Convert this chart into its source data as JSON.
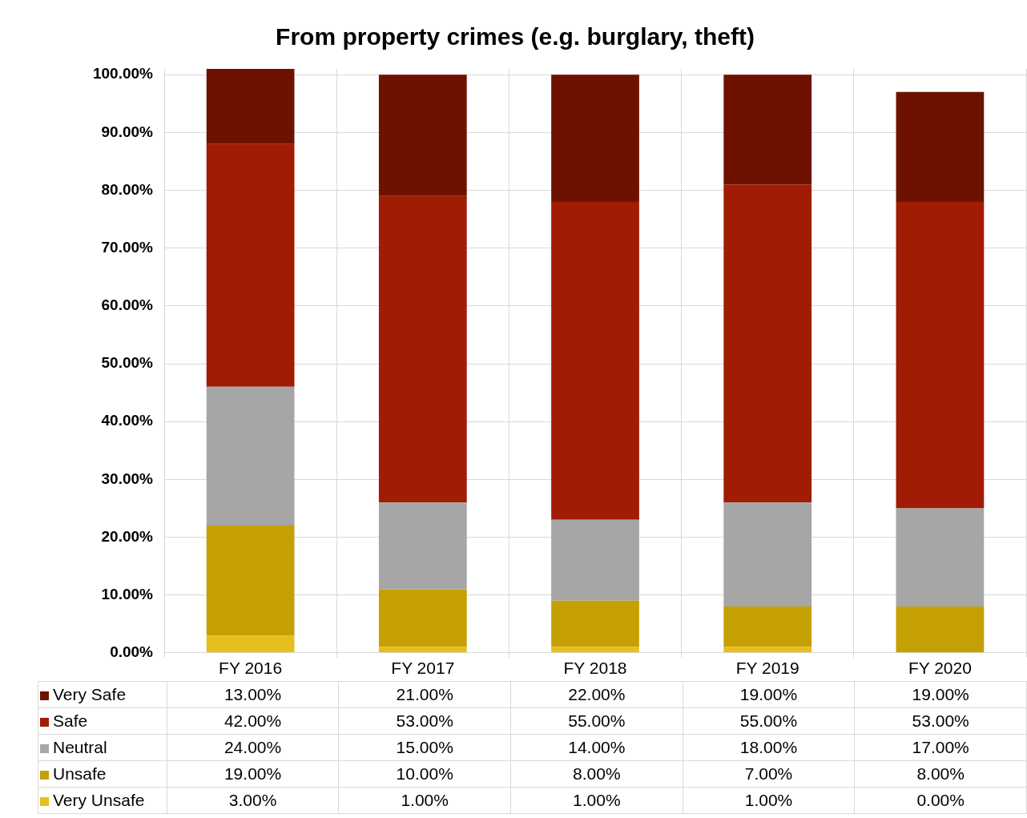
{
  "chart_data": {
    "type": "bar",
    "title": "From property crimes (e.g. burglary, theft)",
    "stacked": true,
    "categories": [
      "FY 2016",
      "FY 2017",
      "FY 2018",
      "FY 2019",
      "FY 2020"
    ],
    "series": [
      {
        "name": "Very Unsafe",
        "color": "#e6be1e",
        "values": [
          3,
          1,
          1,
          1,
          0
        ],
        "value_labels": [
          "3.00%",
          "1.00%",
          "1.00%",
          "1.00%",
          "0.00%"
        ]
      },
      {
        "name": "Unsafe",
        "color": "#c4a003",
        "values": [
          19,
          10,
          8,
          7,
          8
        ],
        "value_labels": [
          "19.00%",
          "10.00%",
          "8.00%",
          "7.00%",
          "8.00%"
        ]
      },
      {
        "name": "Neutral",
        "color": "#a6a6a6",
        "values": [
          24,
          15,
          14,
          18,
          17
        ],
        "value_labels": [
          "24.00%",
          "15.00%",
          "14.00%",
          "18.00%",
          "17.00%"
        ]
      },
      {
        "name": "Safe",
        "color": "#a11c05",
        "values": [
          42,
          53,
          55,
          55,
          53
        ],
        "value_labels": [
          "42.00%",
          "53.00%",
          "55.00%",
          "55.00%",
          "53.00%"
        ]
      },
      {
        "name": "Very Safe",
        "color": "#6e1200",
        "values": [
          13,
          21,
          22,
          19,
          19
        ],
        "value_labels": [
          "13.00%",
          "21.00%",
          "22.00%",
          "19.00%",
          "19.00%"
        ]
      }
    ],
    "ylim": [
      0,
      101
    ],
    "yticks": [
      {
        "value": 0,
        "label": "0.00%"
      },
      {
        "value": 10,
        "label": "10.00%"
      },
      {
        "value": 20,
        "label": "20.00%"
      },
      {
        "value": 30,
        "label": "30.00%"
      },
      {
        "value": 40,
        "label": "40.00%"
      },
      {
        "value": 50,
        "label": "50.00%"
      },
      {
        "value": 60,
        "label": "60.00%"
      },
      {
        "value": 70,
        "label": "70.00%"
      },
      {
        "value": 80,
        "label": "80.00%"
      },
      {
        "value": 90,
        "label": "90.00%"
      },
      {
        "value": 100,
        "label": "100.00%"
      }
    ],
    "grid": "y",
    "legend": "bottom"
  }
}
